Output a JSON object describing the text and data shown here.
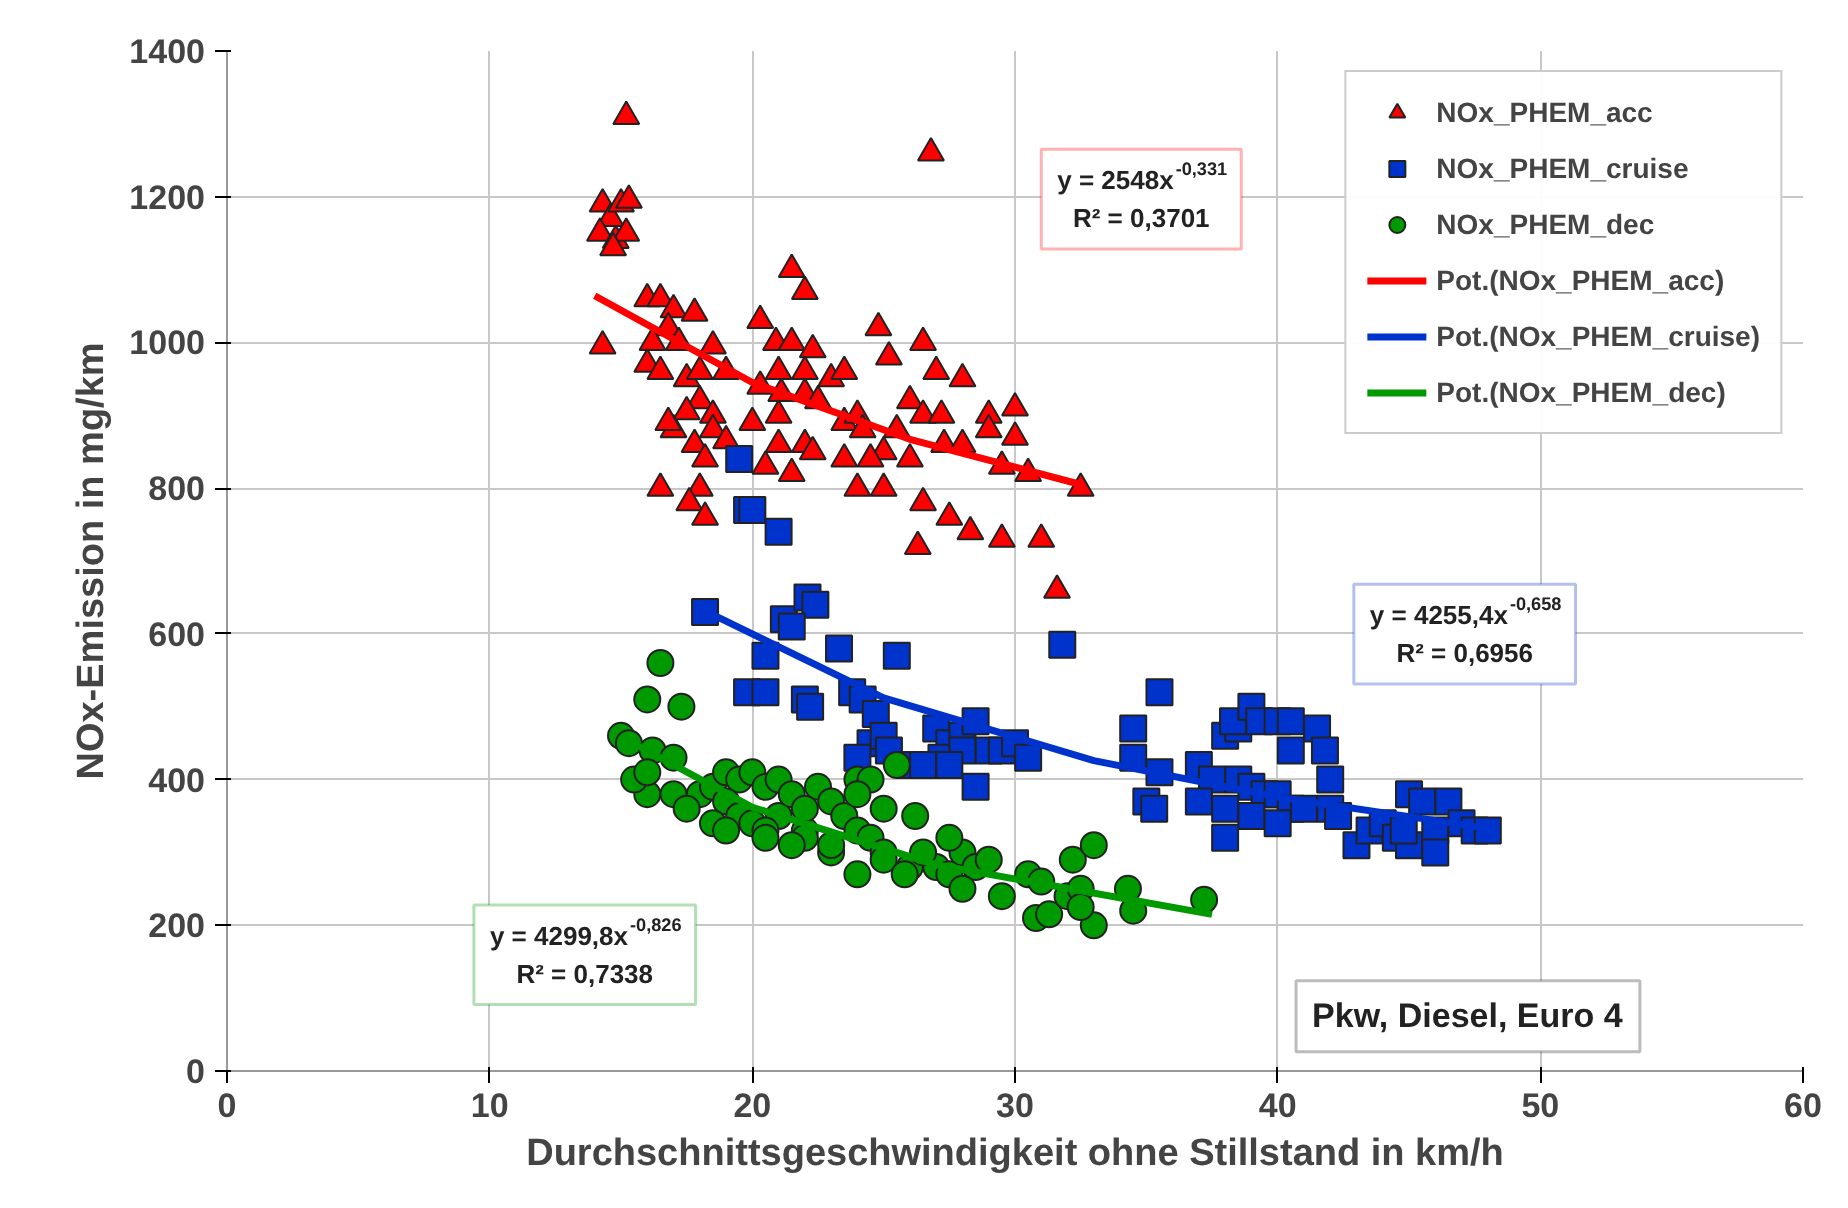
{
  "chart_data": {
    "type": "scatter",
    "xlabel": "Durchschnittsgeschwindigkeit ohne Stillstand in km/h",
    "ylabel": "NOx-Emission in mg/km",
    "xlim": [
      0,
      60
    ],
    "xticks": [
      0,
      10,
      20,
      30,
      40,
      50,
      60
    ],
    "ylim": [
      0,
      1400
    ],
    "yticks": [
      0,
      200,
      400,
      600,
      800,
      1000,
      1200,
      1400
    ],
    "grid": true,
    "legend": "top right",
    "annotations": [
      "y = 2548x$^{-0,331}$\nR² = 0,3701",
      "y = 4255,4x$^{-0,658}$\nR² = 0,6956",
      "y = 4299,8x$^{-0,826}$\nR² = 0,7338",
      "Pkw, Diesel, Euro 4"
    ],
    "series": [
      {
        "name": "NOx_PHEM_acc",
        "marker": "triangle",
        "color": "#ff0000",
        "x": [
          15.2,
          14.3,
          14.6,
          15.0,
          15.3,
          14.2,
          14.8,
          15.2,
          14.7,
          14.3,
          16,
          16.5,
          17,
          17.8,
          16.8,
          16.2,
          17.2,
          18.5,
          16,
          16.5,
          17.5,
          18,
          19,
          18,
          17.5,
          18.5,
          17,
          18.5,
          17.8,
          18.2,
          19,
          16.8,
          16.5,
          18,
          17.6,
          18.2,
          20.3,
          21.5,
          22,
          20.9,
          21.5,
          22.3,
          20.3,
          21.0,
          22.0,
          23,
          21.1,
          23.5,
          24.8,
          25.2,
          22,
          21,
          22.5,
          23.5,
          24,
          20,
          21,
          22,
          24.2,
          25.5,
          26.5,
          27,
          26.8,
          26,
          26.5,
          27.2,
          28,
          29,
          30,
          25,
          26,
          27.3,
          28,
          29,
          30,
          29.5,
          30.5,
          32.5,
          24,
          25,
          26.5,
          27.5,
          28.3,
          26.3,
          29.5,
          31,
          31.6,
          24.5,
          22.3,
          23.5,
          20.5,
          21.5
        ],
        "values": [
          1310,
          1190,
          1170,
          1190,
          1195,
          1150,
          1140,
          1150,
          1130,
          995,
          1060,
          1060,
          1045,
          1040,
          1020,
          1000,
          1000,
          995,
          970,
          960,
          950,
          960,
          960,
          920,
          905,
          900,
          880,
          880,
          860,
          840,
          865,
          890,
          800,
          800,
          780,
          760,
          1030,
          1100,
          1070,
          1000,
          1000,
          990,
          940,
          960,
          960,
          950,
          930,
          960,
          1020,
          980,
          930,
          900,
          920,
          890,
          900,
          890,
          860,
          860,
          880,
          880,
          1000,
          960,
          1260,
          920,
          900,
          900,
          950,
          900,
          910,
          850,
          840,
          860,
          860,
          880,
          870,
          830,
          820,
          800,
          800,
          800,
          780,
          760,
          740,
          720,
          730,
          730,
          660,
          840,
          850,
          840,
          830,
          820
        ]
      },
      {
        "name": "NOx_PHEM_cruise",
        "marker": "square",
        "color": "#0033cc",
        "x": [
          18.2,
          19.5,
          19.8,
          20,
          21,
          21.2,
          22.1,
          22.4,
          21.5,
          20.5,
          19.8,
          20.5,
          22,
          22.2,
          23.3,
          23.8,
          24.2,
          24.7,
          24.5,
          24,
          25.5,
          25,
          25.2,
          26,
          27,
          27.5,
          27.2,
          28,
          28.5,
          28,
          26.5,
          27.5,
          29,
          29.5,
          30,
          30.5,
          28.5,
          31.8,
          34.5,
          35.5,
          34.5,
          35.5,
          35,
          35.3,
          37,
          37.5,
          38,
          38.5,
          38.3,
          39,
          39.3,
          40,
          40.5,
          40.5,
          41.5,
          38.5,
          39,
          39.5,
          40,
          40.5,
          41,
          42,
          41.8,
          37,
          38,
          39,
          40,
          38,
          42,
          42.3,
          43,
          43.5,
          44,
          44.5,
          45,
          45.5,
          46,
          46.5,
          47,
          45,
          46,
          47.5,
          48,
          44.8
        ],
        "values": [
          630,
          840,
          770,
          770,
          740,
          620,
          650,
          640,
          610,
          570,
          520,
          520,
          510,
          500,
          580,
          520,
          510,
          490,
          450,
          430,
          570,
          460,
          440,
          420,
          470,
          450,
          430,
          460,
          480,
          440,
          420,
          420,
          440,
          440,
          450,
          430,
          390,
          585,
          470,
          520,
          430,
          410,
          370,
          360,
          420,
          400,
          460,
          470,
          480,
          500,
          480,
          480,
          480,
          440,
          470,
          400,
          390,
          380,
          380,
          360,
          360,
          400,
          440,
          370,
          360,
          350,
          340,
          320,
          360,
          350,
          310,
          330,
          340,
          320,
          380,
          370,
          330,
          370,
          340,
          310,
          300,
          330,
          330,
          330
        ]
      },
      {
        "name": "NOx_PHEM_dec",
        "marker": "circle",
        "color": "#009900",
        "x": [
          16.5,
          16,
          17.3,
          15,
          15.3,
          16.2,
          17,
          16,
          17,
          18,
          18.5,
          19,
          19.5,
          20,
          20.5,
          21,
          19,
          19.5,
          20,
          21,
          20.5,
          22,
          21.5,
          22.5,
          22,
          23,
          23.5,
          24,
          24.5,
          24,
          25,
          25.5,
          24,
          24.5,
          25,
          23,
          24,
          25,
          26,
          26.2,
          25.8,
          27,
          27.5,
          28,
          28.5,
          29,
          28,
          29.5,
          30.5,
          31,
          30.8,
          31.3,
          32,
          32.5,
          32.2,
          33,
          33,
          32.5,
          34.3,
          34.5,
          37.2,
          26.5,
          27.5,
          22,
          23,
          18.5,
          19,
          20.5,
          21.5,
          15.5,
          16,
          17.5
        ],
        "values": [
          560,
          510,
          500,
          460,
          450,
          440,
          430,
          380,
          380,
          380,
          390,
          410,
          400,
          410,
          390,
          400,
          370,
          350,
          340,
          350,
          330,
          330,
          380,
          390,
          360,
          370,
          350,
          400,
          400,
          380,
          360,
          420,
          330,
          320,
          300,
          300,
          270,
          290,
          280,
          350,
          270,
          280,
          270,
          300,
          280,
          290,
          250,
          240,
          270,
          260,
          210,
          215,
          240,
          250,
          290,
          310,
          200,
          225,
          250,
          220,
          235,
          300,
          320,
          320,
          310,
          340,
          330,
          320,
          310,
          400,
          410,
          360
        ]
      },
      {
        "name": "Pot.(NOx_PHEM_acc)",
        "type": "line",
        "color": "#ff0000",
        "x": [
          14,
          20,
          26,
          32.5
        ],
        "values": [
          1064,
          945,
          867,
          805
        ]
      },
      {
        "name": "Pot.(NOx_PHEM_cruise)",
        "type": "line",
        "color": "#0033cc",
        "x": [
          18,
          25,
          33,
          40,
          48
        ],
        "values": [
          635,
          512,
          426,
          376,
          333
        ]
      },
      {
        "name": "Pot.(NOx_PHEM_dec)",
        "type": "line",
        "color": "#009900",
        "x": [
          15,
          20,
          27,
          37.5
        ],
        "values": [
          459,
          362,
          283,
          215
        ]
      }
    ]
  }
}
